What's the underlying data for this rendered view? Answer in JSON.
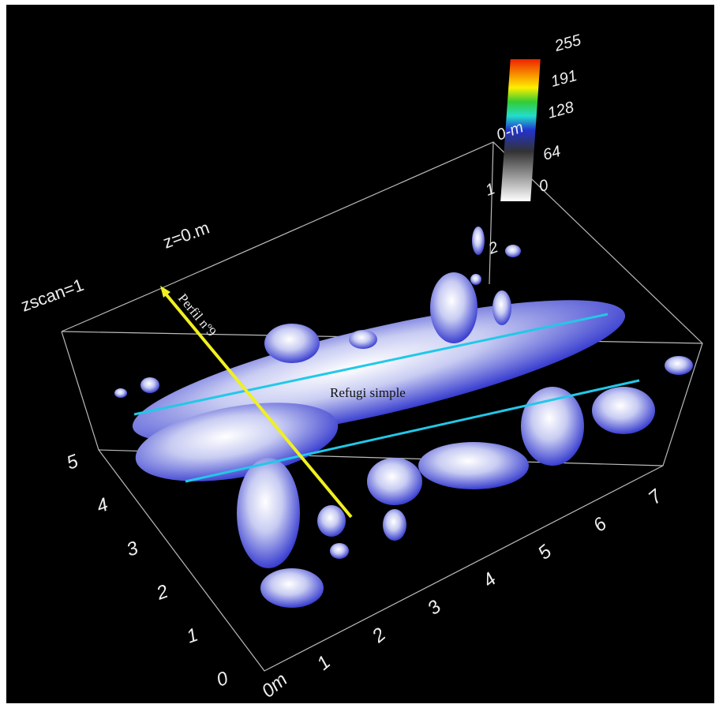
{
  "annotations": {
    "zscan": "zscan=1",
    "z": "z=0.m",
    "profile": "Perfil nº9",
    "zone": "Refugi simple"
  },
  "colorbar": {
    "labels": [
      "255",
      "191",
      "128",
      "64",
      "0"
    ]
  },
  "depth_axis": {
    "labels": [
      "0-m",
      "1",
      "2"
    ]
  },
  "y_axis": {
    "labels": [
      "5",
      "4",
      "3",
      "2",
      "1",
      "0"
    ]
  },
  "x_axis": {
    "labels": [
      "0m",
      "1",
      "2",
      "3",
      "4",
      "5",
      "6",
      "7"
    ]
  }
}
